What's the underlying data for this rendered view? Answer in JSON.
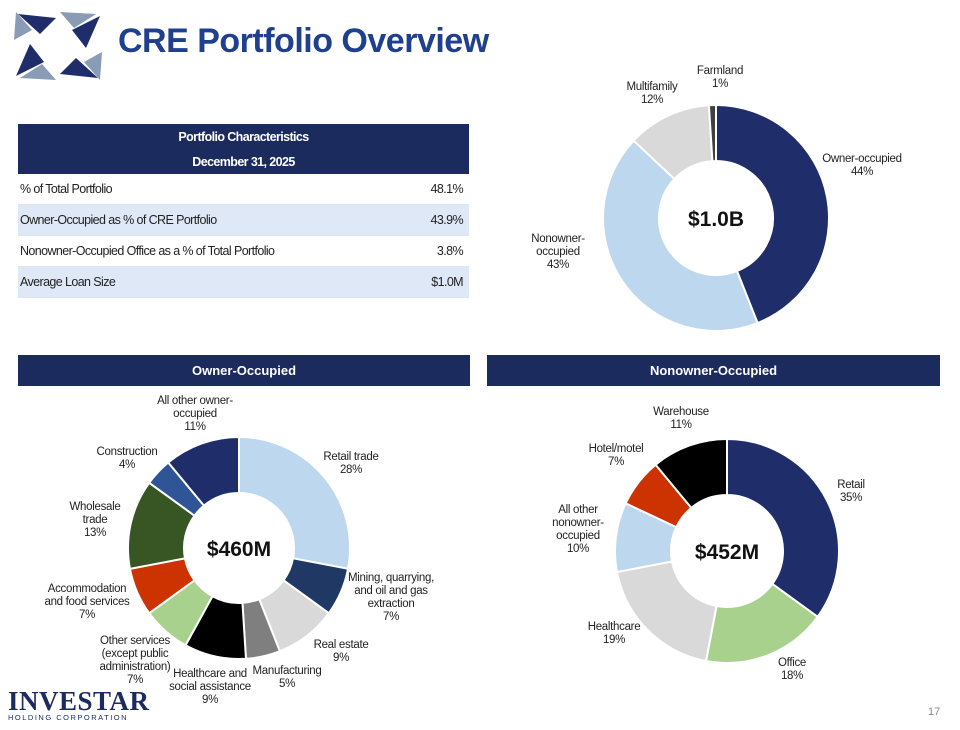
{
  "title": "CRE Portfolio Overview",
  "table": {
    "header1": "Portfolio Characteristics",
    "header2": "December 31, 2025",
    "rows": [
      {
        "label": "% of Total Portfolio",
        "value": "48.1%"
      },
      {
        "label": "Owner-Occupied as % of CRE Portfolio",
        "value": "43.9%"
      },
      {
        "label": "Nonowner-Occupied Office as a % of Total Portfolio",
        "value": "3.8%"
      },
      {
        "label": "Average Loan Size",
        "value": "$1.0M"
      }
    ]
  },
  "bands": {
    "left": "Owner-Occupied",
    "right": "Nonowner-Occupied"
  },
  "brand": {
    "name": "INVESTAR",
    "sub": "HOLDING CORPORATION"
  },
  "page_number": "17",
  "chart_data": [
    {
      "type": "pie",
      "center_label": "$1.0B",
      "categories": [
        "Owner-occupied",
        "Nonowner-occupied",
        "Multifamily",
        "Farmland"
      ],
      "values": [
        44,
        43,
        12,
        1
      ],
      "value_labels": [
        "44%",
        "43%",
        "12%",
        "1%"
      ],
      "colors": [
        "#1f2d6b",
        "#bdd7ee",
        "#d9d9d9",
        "#404040"
      ]
    },
    {
      "type": "pie",
      "center_label": "$460M",
      "categories": [
        "Retail trade",
        "Mining, quarrying, and oil and gas extraction",
        "Real estate",
        "Manufacturing",
        "Healthcare and social assistance",
        "Other services (except public administration)",
        "Accommodation and food services",
        "Wholesale trade",
        "Construction",
        "All other owner-occupied"
      ],
      "values": [
        28,
        7,
        9,
        5,
        9,
        7,
        7,
        13,
        4,
        11
      ],
      "value_labels": [
        "28%",
        "7%",
        "9%",
        "5%",
        "9%",
        "7%",
        "7%",
        "13%",
        "4%",
        "11%"
      ],
      "colors": [
        "#bdd7ee",
        "#1f3864",
        "#d9d9d9",
        "#7f7f7f",
        "#000000",
        "#a9d18e",
        "#cc3300",
        "#375623",
        "#2f5597",
        "#1f2d6b"
      ]
    },
    {
      "type": "pie",
      "center_label": "$452M",
      "categories": [
        "Retail",
        "Office",
        "Healthcare",
        "All other nonowner-occupied",
        "Hotel/motel",
        "Warehouse"
      ],
      "values": [
        35,
        18,
        19,
        10,
        7,
        11
      ],
      "value_labels": [
        "35%",
        "18%",
        "19%",
        "10%",
        "7%",
        "11%"
      ],
      "colors": [
        "#1f2d6b",
        "#a9d18e",
        "#d9d9d9",
        "#bdd7ee",
        "#cc3300",
        "#000000"
      ]
    }
  ]
}
